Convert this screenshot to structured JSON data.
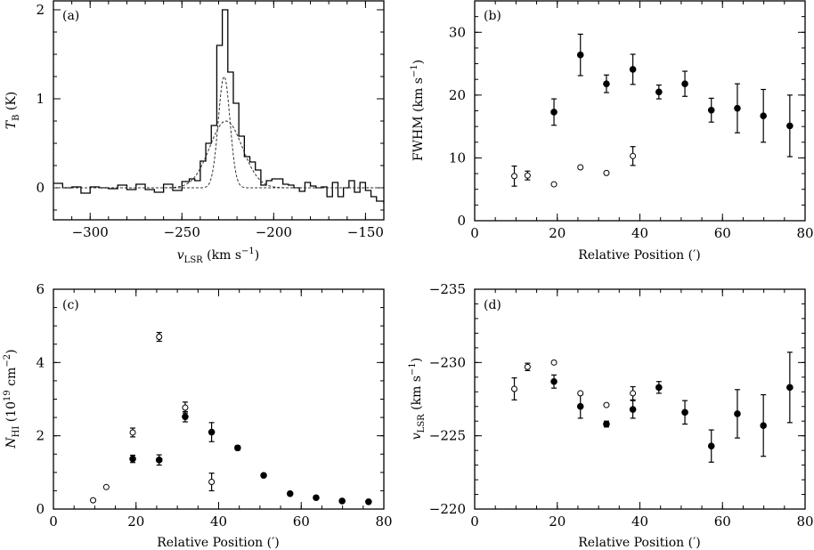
{
  "chart_data": [
    {
      "panel": "(a)",
      "type": "line",
      "title": "",
      "xlabel": "v_LSR (km s^-1)",
      "ylabel": "T_B (K)",
      "xlim": [
        -320,
        -140
      ],
      "ylim": [
        -0.36,
        2.1
      ],
      "xticks": [
        -300,
        -250,
        -200,
        -150
      ],
      "xtick_labels": [
        "−300",
        "−250",
        "−200",
        "−150"
      ],
      "yticks": [
        0,
        1,
        2
      ],
      "ytick_labels": [
        "0",
        "1",
        "2"
      ],
      "series": [
        {
          "name": "observed spectrum",
          "style": "step-solid",
          "x": [
            -320,
            -315,
            -310,
            -305,
            -300,
            -295,
            -290,
            -285,
            -280,
            -275,
            -270,
            -265,
            -260,
            -255,
            -250,
            -246,
            -243,
            -240,
            -237,
            -234,
            -231,
            -228,
            -225,
            -222,
            -219,
            -216,
            -213,
            -210,
            -207,
            -204,
            -201,
            -198,
            -195,
            -192,
            -189,
            -186,
            -183,
            -180,
            -177,
            -174,
            -171,
            -168,
            -165,
            -162,
            -159,
            -156,
            -153,
            -150,
            -147,
            -144,
            -140
          ],
          "y": [
            0.05,
            0.0,
            0.01,
            -0.06,
            0.01,
            0.0,
            -0.01,
            0.03,
            -0.02,
            0.04,
            -0.02,
            -0.05,
            0.04,
            -0.03,
            0.07,
            0.1,
            0.08,
            0.3,
            0.5,
            0.7,
            1.6,
            2.0,
            1.3,
            0.95,
            0.58,
            0.35,
            0.29,
            0.2,
            0.03,
            0.08,
            0.1,
            0.1,
            0.04,
            0.03,
            0.0,
            -0.04,
            0.06,
            0.02,
            0.0,
            0.01,
            -0.1,
            0.06,
            -0.1,
            0.0,
            0.08,
            -0.05,
            0.06,
            -0.03,
            -0.1,
            -0.15,
            -0.18
          ]
        },
        {
          "name": "narrow gaussian component",
          "style": "dashed",
          "amplitude": 1.25,
          "center": -227,
          "fwhm": 7.5
        },
        {
          "name": "broad gaussian component",
          "style": "dashed",
          "amplitude": 0.75,
          "center": -226,
          "fwhm": 21
        }
      ]
    },
    {
      "panel": "(b)",
      "type": "scatter",
      "title": "",
      "xlabel": "Relative Position (′)",
      "ylabel": "FWHM (km s^-1)",
      "xlim": [
        0,
        80
      ],
      "ylim": [
        0,
        35
      ],
      "xticks": [
        0,
        20,
        40,
        60,
        80
      ],
      "xtick_labels": [
        "0",
        "20",
        "40",
        "60",
        "80"
      ],
      "yticks": [
        0,
        10,
        20,
        30
      ],
      "ytick_labels": [
        "0",
        "10",
        "20",
        "30"
      ],
      "series": [
        {
          "name": "broad component (filled)",
          "marker": "filled-circle",
          "x": [
            19.2,
            25.6,
            31.9,
            38.3,
            44.6,
            50.9,
            57.3,
            63.6,
            69.9,
            76.3
          ],
          "y": [
            17.3,
            26.4,
            21.8,
            24.1,
            20.5,
            21.8,
            17.6,
            17.9,
            16.7,
            15.1
          ],
          "err": [
            2.1,
            3.3,
            1.4,
            2.4,
            1.1,
            2.0,
            1.9,
            3.9,
            4.2,
            4.9
          ]
        },
        {
          "name": "narrow component (open)",
          "marker": "open-circle",
          "x": [
            9.6,
            12.8,
            19.2,
            25.6,
            31.9,
            38.3
          ],
          "y": [
            7.1,
            7.2,
            5.8,
            8.5,
            7.6,
            10.3
          ],
          "err": [
            1.6,
            0.7,
            0.2,
            0.2,
            0.2,
            1.5
          ]
        }
      ]
    },
    {
      "panel": "(c)",
      "type": "scatter",
      "title": "",
      "xlabel": "Relative Position (′)",
      "ylabel": "N_HI (10^19 cm^-2)",
      "xlim": [
        0,
        80
      ],
      "ylim": [
        0,
        6
      ],
      "xticks": [
        0,
        20,
        40,
        60,
        80
      ],
      "xtick_labels": [
        "0",
        "20",
        "40",
        "60",
        "80"
      ],
      "yticks": [
        0,
        2,
        4,
        6
      ],
      "ytick_labels": [
        "0",
        "2",
        "4",
        "6"
      ],
      "series": [
        {
          "name": "broad component (filled)",
          "marker": "filled-circle",
          "x": [
            19.2,
            25.6,
            31.9,
            38.3,
            44.6,
            50.9,
            57.3,
            63.6,
            69.9,
            76.3
          ],
          "y": [
            1.37,
            1.34,
            2.52,
            2.1,
            1.67,
            0.92,
            0.42,
            0.31,
            0.22,
            0.2
          ],
          "err": [
            0.1,
            0.14,
            0.14,
            0.26,
            0.06,
            0.05,
            0.03,
            0.03,
            0.03,
            0.03
          ]
        },
        {
          "name": "narrow component (open)",
          "marker": "open-circle",
          "x": [
            9.6,
            12.8,
            19.2,
            25.6,
            31.9,
            38.3
          ],
          "y": [
            0.24,
            0.6,
            2.09,
            4.7,
            2.77,
            0.74
          ],
          "err": [
            0.03,
            0.03,
            0.12,
            0.12,
            0.15,
            0.24
          ]
        }
      ]
    },
    {
      "panel": "(d)",
      "type": "scatter",
      "title": "",
      "xlabel": "Relative Position (′)",
      "ylabel": "v_LSR (km s^-1)",
      "xlim": [
        0,
        80
      ],
      "ylim": [
        -220,
        -235
      ],
      "xticks": [
        0,
        20,
        40,
        60,
        80
      ],
      "xtick_labels": [
        "0",
        "20",
        "40",
        "60",
        "80"
      ],
      "yticks": [
        -235,
        -230,
        -225,
        -220
      ],
      "ytick_labels": [
        "−235",
        "−230",
        "−225",
        "−220"
      ],
      "series": [
        {
          "name": "broad component (filled)",
          "marker": "filled-circle",
          "x": [
            19.2,
            25.6,
            31.9,
            38.3,
            44.6,
            50.9,
            57.3,
            63.6,
            69.9,
            76.3
          ],
          "y": [
            -228.7,
            -227.0,
            -225.8,
            -226.8,
            -228.3,
            -226.6,
            -224.3,
            -226.5,
            -225.7,
            -228.3
          ],
          "err": [
            0.45,
            0.8,
            0.2,
            0.6,
            0.4,
            0.8,
            1.1,
            1.65,
            2.1,
            2.4
          ]
        },
        {
          "name": "narrow component (open)",
          "marker": "open-circle",
          "x": [
            9.6,
            12.8,
            19.2,
            25.6,
            31.9,
            38.3
          ],
          "y": [
            -228.2,
            -229.7,
            -230.0,
            -227.9,
            -227.1,
            -227.9
          ],
          "err": [
            0.75,
            0.25,
            0.0,
            0.05,
            0.0,
            0.45
          ]
        }
      ]
    }
  ]
}
